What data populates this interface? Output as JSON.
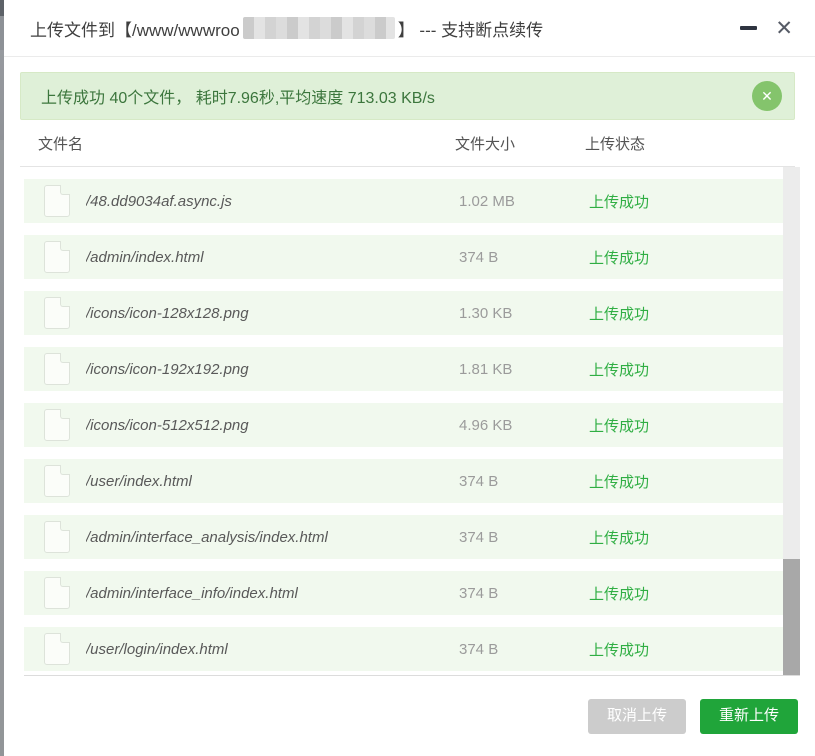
{
  "window": {
    "title_prefix": "上传文件到【/www/wwwroo",
    "title_suffix": "】 --- 支持断点续传",
    "close_glyph": "✕"
  },
  "banner": {
    "message": "上传成功 40个文件， 耗时7.96秒,平均速度 713.03 KB/s",
    "close_glyph": "✕"
  },
  "table": {
    "headers": {
      "name": "文件名",
      "size": "文件大小",
      "status": "上传状态"
    },
    "rows": [
      {
        "name": "/48.dd9034af.async.js",
        "size": "1.02 MB",
        "status": "上传成功"
      },
      {
        "name": "/admin/index.html",
        "size": "374 B",
        "status": "上传成功"
      },
      {
        "name": "/icons/icon-128x128.png",
        "size": "1.30 KB",
        "status": "上传成功"
      },
      {
        "name": "/icons/icon-192x192.png",
        "size": "1.81 KB",
        "status": "上传成功"
      },
      {
        "name": "/icons/icon-512x512.png",
        "size": "4.96 KB",
        "status": "上传成功"
      },
      {
        "name": "/user/index.html",
        "size": "374 B",
        "status": "上传成功"
      },
      {
        "name": "/admin/interface_analysis/index.html",
        "size": "374 B",
        "status": "上传成功"
      },
      {
        "name": "/admin/interface_info/index.html",
        "size": "374 B",
        "status": "上传成功"
      },
      {
        "name": "/user/login/index.html",
        "size": "374 B",
        "status": "上传成功"
      }
    ]
  },
  "footer": {
    "cancel_label": "取消上传",
    "reupload_label": "重新上传"
  },
  "colors": {
    "accent_green": "#20a53a",
    "status_green": "#2fae43",
    "banner_bg": "#dff0d8",
    "banner_text": "#3c763d",
    "row_bg": "#f1f9ee"
  }
}
